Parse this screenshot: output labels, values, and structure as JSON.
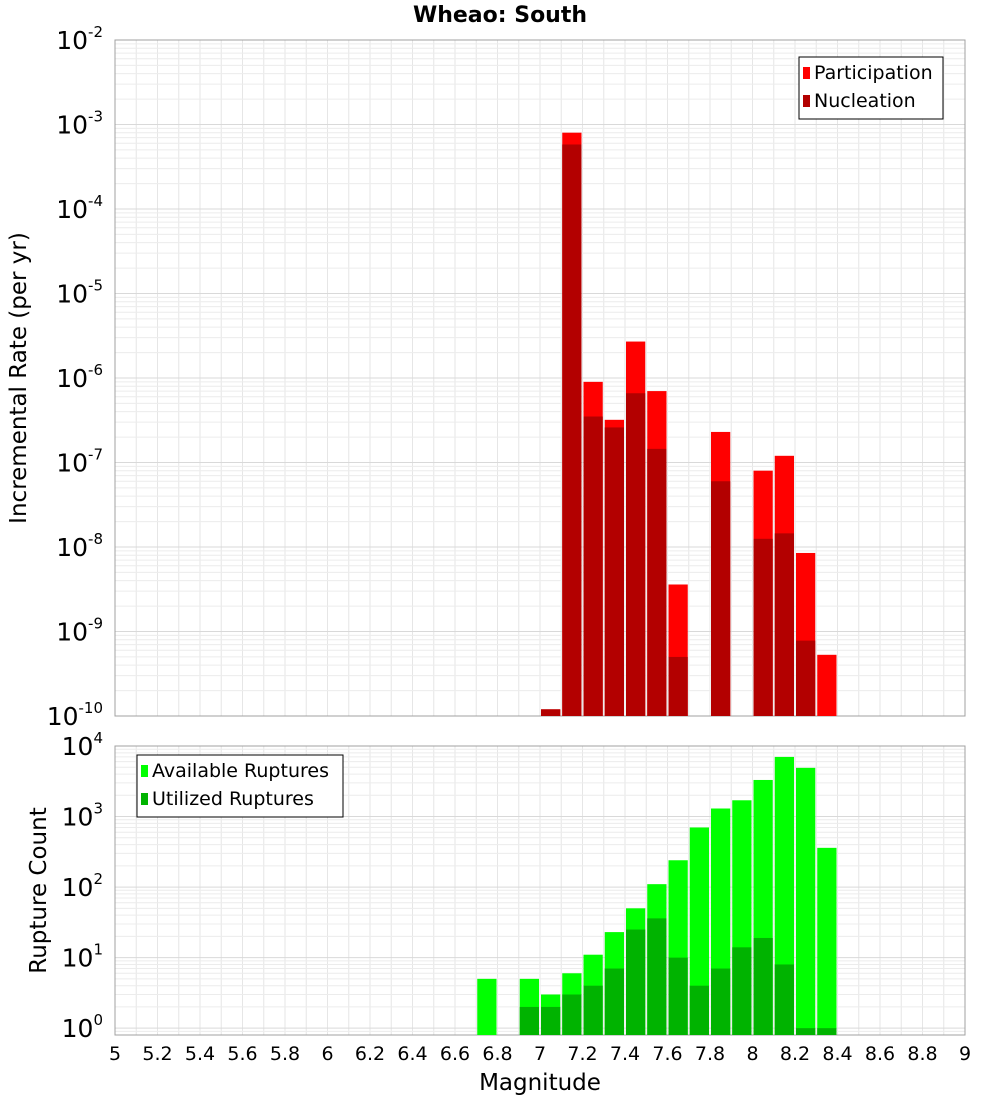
{
  "chart_data": [
    {
      "type": "bar",
      "title": "Wheao: South",
      "xlabel": "Magnitude",
      "ylabel": "Incremental Rate (per yr)",
      "yscale": "log",
      "ylim": [
        1e-10,
        0.01
      ],
      "xlim": [
        5,
        9
      ],
      "bin_width": 0.1,
      "grid": true,
      "legend_position": "top-right",
      "series": [
        {
          "name": "Participation",
          "color": "#ff0000",
          "points": [
            {
              "x": 7.05,
              "y": 1.2e-10
            },
            {
              "x": 7.15,
              "y": 0.0008
            },
            {
              "x": 7.25,
              "y": 9e-07
            },
            {
              "x": 7.35,
              "y": 3.2e-07
            },
            {
              "x": 7.45,
              "y": 2.7e-06
            },
            {
              "x": 7.55,
              "y": 7e-07
            },
            {
              "x": 7.65,
              "y": 3.6e-09
            },
            {
              "x": 7.85,
              "y": 2.3e-07
            },
            {
              "x": 8.05,
              "y": 8e-08
            },
            {
              "x": 8.15,
              "y": 1.2e-07
            },
            {
              "x": 8.25,
              "y": 8.5e-09
            },
            {
              "x": 8.35,
              "y": 5.3e-10
            }
          ]
        },
        {
          "name": "Nucleation",
          "color": "#b30000",
          "points": [
            {
              "x": 7.05,
              "y": 1.2e-10
            },
            {
              "x": 7.15,
              "y": 0.00058
            },
            {
              "x": 7.25,
              "y": 3.5e-07
            },
            {
              "x": 7.35,
              "y": 2.6e-07
            },
            {
              "x": 7.45,
              "y": 6.6e-07
            },
            {
              "x": 7.55,
              "y": 1.45e-07
            },
            {
              "x": 7.65,
              "y": 5e-10
            },
            {
              "x": 7.85,
              "y": 6e-08
            },
            {
              "x": 8.05,
              "y": 1.25e-08
            },
            {
              "x": 8.15,
              "y": 1.45e-08
            },
            {
              "x": 8.25,
              "y": 7.8e-10
            }
          ]
        }
      ]
    },
    {
      "type": "bar",
      "xlabel": "Magnitude",
      "ylabel": "Rupture Count",
      "yscale": "log",
      "ylim": [
        0.8,
        10000.0
      ],
      "xlim": [
        5,
        9
      ],
      "bin_width": 0.1,
      "grid": true,
      "legend_position": "top-left",
      "x_ticks": [
        "5",
        "5.2",
        "5.4",
        "5.6",
        "5.8",
        "6",
        "6.2",
        "6.4",
        "6.6",
        "6.8",
        "7",
        "7.2",
        "7.4",
        "7.6",
        "7.8",
        "8",
        "8.2",
        "8.4",
        "8.6",
        "8.8",
        "9"
      ],
      "series": [
        {
          "name": "Available Ruptures",
          "color": "#00ff00",
          "points": [
            {
              "x": 6.75,
              "y": 5
            },
            {
              "x": 6.95,
              "y": 5
            },
            {
              "x": 7.05,
              "y": 3
            },
            {
              "x": 7.15,
              "y": 6
            },
            {
              "x": 7.25,
              "y": 11
            },
            {
              "x": 7.35,
              "y": 23
            },
            {
              "x": 7.45,
              "y": 50
            },
            {
              "x": 7.55,
              "y": 110
            },
            {
              "x": 7.65,
              "y": 240
            },
            {
              "x": 7.75,
              "y": 700
            },
            {
              "x": 7.85,
              "y": 1300
            },
            {
              "x": 7.95,
              "y": 1700
            },
            {
              "x": 8.05,
              "y": 3300
            },
            {
              "x": 8.15,
              "y": 7000
            },
            {
              "x": 8.25,
              "y": 4900
            },
            {
              "x": 8.35,
              "y": 360
            }
          ]
        },
        {
          "name": "Utilized Ruptures",
          "color": "#00b300",
          "points": [
            {
              "x": 6.95,
              "y": 2
            },
            {
              "x": 7.05,
              "y": 2
            },
            {
              "x": 7.15,
              "y": 3
            },
            {
              "x": 7.25,
              "y": 4
            },
            {
              "x": 7.35,
              "y": 7
            },
            {
              "x": 7.45,
              "y": 25
            },
            {
              "x": 7.55,
              "y": 36
            },
            {
              "x": 7.65,
              "y": 10
            },
            {
              "x": 7.75,
              "y": 4
            },
            {
              "x": 7.85,
              "y": 7
            },
            {
              "x": 7.95,
              "y": 14
            },
            {
              "x": 8.05,
              "y": 19
            },
            {
              "x": 8.15,
              "y": 8
            },
            {
              "x": 8.25,
              "y": 1
            },
            {
              "x": 8.35,
              "y": 1
            }
          ]
        }
      ]
    }
  ]
}
